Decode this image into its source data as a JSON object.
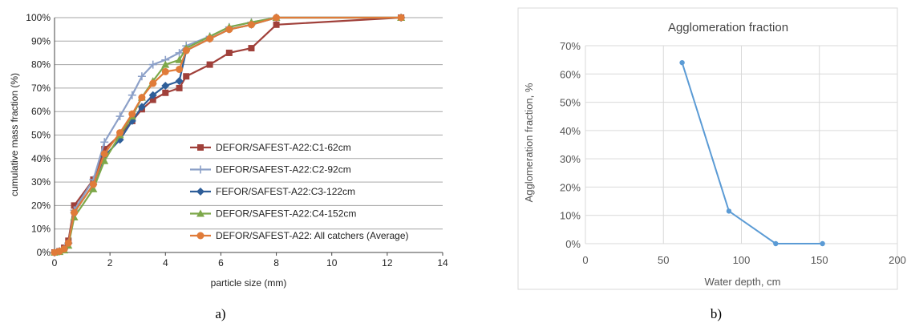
{
  "captions": {
    "a": "a)",
    "b": "b)"
  },
  "chart_data": [
    {
      "type": "line",
      "xlabel": "particle size (mm)",
      "ylabel": "cumulative mass fraction (%)",
      "xlim": [
        0,
        14
      ],
      "ylim": [
        0,
        100
      ],
      "xticks": [
        0,
        2,
        4,
        6,
        8,
        10,
        12,
        14
      ],
      "yticks": [
        0,
        10,
        20,
        30,
        40,
        50,
        60,
        70,
        80,
        90,
        100
      ],
      "y_tick_suffix": "%",
      "grid": "horizontal",
      "legend_position": "lower-right",
      "series": [
        {
          "name": "DEFOR/SAFEST-A22:C1-62cm",
          "color": "#A0403A",
          "marker": "square",
          "x": [
            0,
            0.18,
            0.35,
            0.5,
            0.71,
            1.4,
            1.8,
            2.36,
            2.8,
            3.15,
            3.55,
            4.0,
            4.5,
            4.75,
            5.6,
            6.3,
            7.1,
            8.0,
            12.5
          ],
          "y": [
            0,
            0.5,
            2,
            5,
            20,
            31,
            44,
            50,
            56,
            61,
            65,
            68,
            70,
            75,
            80,
            85,
            87,
            97,
            100
          ]
        },
        {
          "name": "DEFOR/SAFEST-A22:C2-92cm",
          "color": "#8CA0C8",
          "marker": "plus",
          "x": [
            0,
            0.18,
            0.35,
            0.5,
            0.71,
            1.4,
            1.8,
            2.36,
            2.8,
            3.15,
            3.55,
            4.0,
            4.5,
            4.75,
            5.6,
            6.3,
            7.1,
            8.0,
            12.5
          ],
          "y": [
            0,
            0.5,
            1.5,
            4,
            18,
            31,
            47,
            58,
            67,
            75,
            80,
            82,
            85,
            88,
            92,
            96,
            98,
            100,
            100
          ]
        },
        {
          "name": "FEFOR/SAFEST-A22:C3-122cm",
          "color": "#2E5E99",
          "marker": "diamond",
          "x": [
            0,
            0.18,
            0.35,
            0.5,
            0.71,
            1.4,
            1.8,
            2.36,
            2.8,
            3.15,
            3.55,
            4.0,
            4.5,
            4.75,
            5.6,
            6.3,
            7.1,
            8.0,
            12.5
          ],
          "y": [
            0,
            0.5,
            1.5,
            4,
            17,
            29,
            41,
            48,
            56,
            62,
            67,
            71,
            73,
            86,
            91,
            95,
            97,
            100,
            100
          ]
        },
        {
          "name": "DEFOR/SAFEST-A22:C4-152cm",
          "color": "#7DA84A",
          "marker": "triangle",
          "x": [
            0,
            0.18,
            0.35,
            0.5,
            0.71,
            1.4,
            1.8,
            2.36,
            2.8,
            3.15,
            3.55,
            4.0,
            4.5,
            4.75,
            5.6,
            6.3,
            7.1,
            8.0,
            12.5
          ],
          "y": [
            0,
            0.3,
            1,
            3,
            15,
            27,
            39,
            50,
            58,
            66,
            73,
            80,
            82,
            87,
            92,
            96,
            98,
            100,
            100
          ]
        },
        {
          "name": "DEFOR/SAFEST-A22: All catchers (Average)",
          "color": "#E07B39",
          "marker": "circle",
          "x": [
            0,
            0.18,
            0.35,
            0.5,
            0.71,
            1.4,
            1.8,
            2.36,
            2.8,
            3.15,
            3.55,
            4.0,
            4.5,
            4.75,
            5.6,
            6.3,
            7.1,
            8.0,
            12.5
          ],
          "y": [
            0,
            0.5,
            1.5,
            4,
            17,
            29,
            42,
            51,
            59,
            66,
            72,
            77,
            78,
            86,
            91,
            95,
            97,
            100,
            100
          ]
        }
      ]
    },
    {
      "type": "line",
      "title": "Agglomeration fraction",
      "xlabel": "Water depth, cm",
      "ylabel": "Agglomeration fraction, %",
      "xlim": [
        0,
        200
      ],
      "ylim": [
        0,
        70
      ],
      "xticks": [
        0,
        50,
        100,
        150,
        200
      ],
      "yticks": [
        0,
        10,
        20,
        30,
        40,
        50,
        60,
        70
      ],
      "y_tick_suffix": "%",
      "grid": "both",
      "series": [
        {
          "color": "#5B9BD5",
          "marker": "circle",
          "x": [
            62,
            92,
            122,
            152
          ],
          "y": [
            64,
            11.5,
            0,
            0
          ]
        }
      ]
    }
  ]
}
